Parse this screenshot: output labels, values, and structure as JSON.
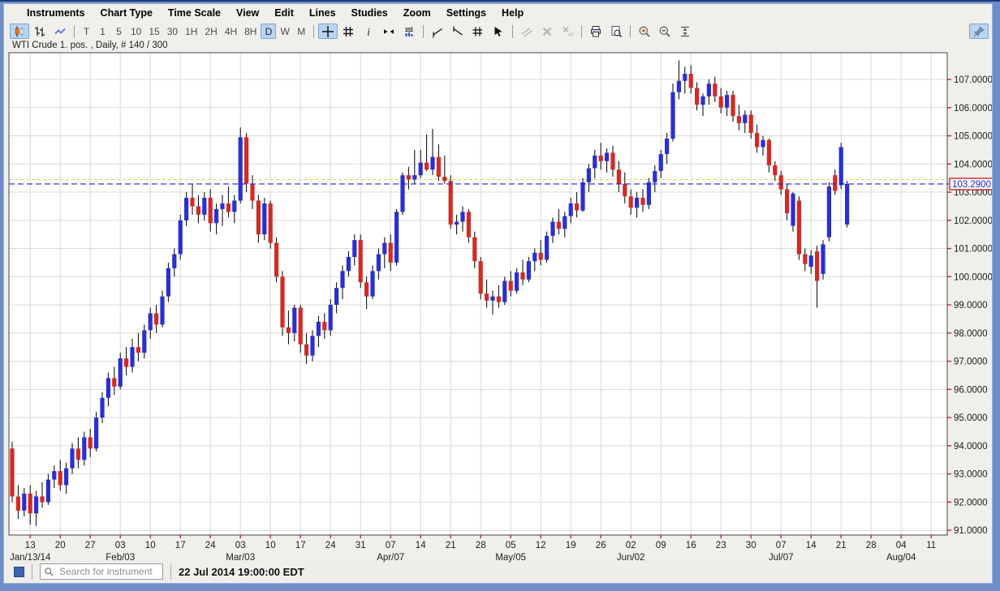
{
  "menu": {
    "items": [
      "Instruments",
      "Chart Type",
      "Time Scale",
      "View",
      "Edit",
      "Lines",
      "Studies",
      "Zoom",
      "Settings",
      "Help"
    ]
  },
  "toolbar": {
    "groups": [
      {
        "buttons": [
          {
            "icon": "candlestick-chart",
            "active": true
          },
          {
            "icon": "ohlc-bars"
          },
          {
            "icon": "line-chart"
          }
        ]
      },
      {
        "buttons": [
          {
            "label": "T"
          },
          {
            "label": "1"
          },
          {
            "label": "5"
          },
          {
            "label": "10"
          },
          {
            "label": "15"
          },
          {
            "label": "30"
          },
          {
            "label": "1H"
          },
          {
            "label": "2H"
          },
          {
            "label": "4H"
          },
          {
            "label": "8H"
          },
          {
            "label": "D",
            "active": true
          },
          {
            "label": "W"
          },
          {
            "label": "M"
          }
        ]
      },
      {
        "buttons": [
          {
            "icon": "crosshair",
            "active": true
          },
          {
            "icon": "grid"
          },
          {
            "icon": "info"
          },
          {
            "icon": "expand-horizontal"
          },
          {
            "icon": "volume"
          }
        ]
      },
      {
        "buttons": [
          {
            "icon": "trendline"
          },
          {
            "icon": "trendline-ray"
          },
          {
            "icon": "trendline-hash"
          },
          {
            "icon": "pointer"
          }
        ]
      },
      {
        "buttons": [
          {
            "icon": "parallel-lines",
            "disabled": true
          },
          {
            "icon": "delete-drawing",
            "disabled": true
          },
          {
            "icon": "delete-all-drawings",
            "disabled": true
          }
        ]
      },
      {
        "buttons": [
          {
            "icon": "print"
          },
          {
            "icon": "print-preview"
          }
        ]
      },
      {
        "buttons": [
          {
            "icon": "zoom-in"
          },
          {
            "icon": "zoom-out"
          },
          {
            "icon": "fit-vertical"
          }
        ]
      }
    ],
    "pin": {
      "icon": "pin",
      "active": true
    }
  },
  "chart": {
    "title": "WTI Crude 1. pos. , Daily, # 140 / 300"
  },
  "chart_data": {
    "type": "candlestick",
    "title": "WTI Crude 1. pos. , Daily, # 140 / 300",
    "bars_shown": 140,
    "bars_total": 300,
    "ylim": [
      90.83,
      107.95
    ],
    "y_ticks": [
      91,
      92,
      93,
      94,
      95,
      96,
      97,
      98,
      99,
      100,
      101,
      102,
      103,
      104,
      105,
      106,
      107
    ],
    "x_tick_days": [
      "13",
      "20",
      "27",
      "03",
      "10",
      "17",
      "24",
      "03",
      "10",
      "17",
      "24",
      "31",
      "07",
      "14",
      "21",
      "28",
      "05",
      "12",
      "19",
      "26",
      "02",
      "09",
      "16",
      "23",
      "30",
      "07",
      "14",
      "21",
      "28",
      "04",
      "11"
    ],
    "month_labels": [
      {
        "tick": 0,
        "label": "Jan/13/14"
      },
      {
        "tick": 3,
        "label": "Feb/03"
      },
      {
        "tick": 7,
        "label": "Mar/03"
      },
      {
        "tick": 12,
        "label": "Apr/07"
      },
      {
        "tick": 16,
        "label": "May/05"
      },
      {
        "tick": 20,
        "label": "Jun/02"
      },
      {
        "tick": 25,
        "label": "Jul/07"
      },
      {
        "tick": 29,
        "label": "Aug/04"
      }
    ],
    "last_price": 103.29,
    "last_price_label": "103.2900",
    "settlement_price": 103.45,
    "colors": {
      "up": "#2a2fd4",
      "down": "#d42a24",
      "wick": "#000000",
      "grid": "#d9d9d9",
      "axis_tick": "#cc2222",
      "axis_label": "#1c1c1c",
      "border": "#444444",
      "last_price_line": "#2020e0",
      "last_price_box_border": "#cc0000",
      "settlement_line": "#ddd45a",
      "plot_bg": "#ffffff"
    },
    "candles": [
      [
        93.9,
        94.15,
        92.0,
        92.2
      ],
      [
        92.2,
        92.6,
        91.4,
        91.7
      ],
      [
        91.7,
        92.5,
        91.5,
        92.3
      ],
      [
        92.3,
        92.6,
        91.2,
        91.6
      ],
      [
        91.6,
        92.4,
        91.15,
        92.2
      ],
      [
        92.2,
        92.7,
        91.8,
        92.0
      ],
      [
        92.0,
        93.0,
        91.9,
        92.8
      ],
      [
        92.8,
        93.3,
        92.5,
        93.1
      ],
      [
        93.1,
        93.5,
        92.4,
        92.6
      ],
      [
        92.6,
        93.4,
        92.3,
        93.2
      ],
      [
        93.2,
        94.1,
        93.0,
        93.9
      ],
      [
        93.9,
        94.3,
        93.2,
        93.5
      ],
      [
        93.5,
        94.5,
        93.3,
        94.3
      ],
      [
        94.3,
        94.6,
        93.6,
        93.9
      ],
      [
        93.9,
        95.2,
        93.8,
        95.0
      ],
      [
        95.0,
        95.9,
        94.8,
        95.7
      ],
      [
        95.7,
        96.6,
        95.4,
        96.4
      ],
      [
        96.4,
        96.8,
        95.8,
        96.1
      ],
      [
        96.1,
        97.3,
        96.0,
        97.1
      ],
      [
        97.1,
        97.5,
        96.5,
        96.8
      ],
      [
        96.8,
        97.8,
        96.6,
        97.5
      ],
      [
        97.5,
        98.0,
        97.0,
        97.3
      ],
      [
        97.3,
        98.3,
        97.1,
        98.1
      ],
      [
        98.1,
        98.9,
        97.8,
        98.7
      ],
      [
        98.7,
        99.0,
        98.0,
        98.3
      ],
      [
        98.3,
        99.5,
        98.2,
        99.3
      ],
      [
        99.3,
        100.5,
        99.1,
        100.3
      ],
      [
        100.3,
        101.0,
        100.0,
        100.8
      ],
      [
        100.8,
        102.2,
        100.6,
        102.0
      ],
      [
        102.0,
        103.0,
        101.8,
        102.8
      ],
      [
        102.8,
        103.3,
        102.2,
        102.5
      ],
      [
        102.5,
        102.9,
        101.9,
        102.2
      ],
      [
        102.2,
        103.0,
        102.0,
        102.8
      ],
      [
        102.8,
        103.1,
        101.6,
        101.9
      ],
      [
        101.9,
        102.6,
        101.5,
        102.4
      ],
      [
        102.4,
        102.9,
        101.8,
        102.6
      ],
      [
        102.6,
        103.2,
        102.1,
        102.3
      ],
      [
        102.3,
        102.9,
        101.9,
        102.7
      ],
      [
        102.7,
        105.3,
        102.6,
        104.95
      ],
      [
        104.95,
        105.1,
        103.0,
        103.3
      ],
      [
        103.3,
        103.6,
        102.4,
        102.7
      ],
      [
        102.7,
        102.9,
        101.2,
        101.5
      ],
      [
        101.5,
        102.8,
        101.3,
        102.6
      ],
      [
        102.6,
        102.7,
        101.0,
        101.2
      ],
      [
        101.2,
        101.4,
        99.8,
        100.0
      ],
      [
        100.0,
        100.2,
        97.9,
        98.2
      ],
      [
        98.2,
        98.8,
        97.6,
        98.0
      ],
      [
        98.0,
        99.0,
        97.7,
        98.9
      ],
      [
        98.9,
        99.0,
        97.3,
        97.6
      ],
      [
        97.6,
        98.0,
        96.9,
        97.2
      ],
      [
        97.2,
        98.1,
        97.0,
        97.9
      ],
      [
        97.9,
        98.6,
        97.5,
        98.4
      ],
      [
        98.4,
        98.7,
        97.8,
        98.1
      ],
      [
        98.1,
        99.2,
        97.9,
        99.0
      ],
      [
        99.0,
        99.8,
        98.7,
        99.6
      ],
      [
        99.6,
        100.4,
        99.2,
        100.2
      ],
      [
        100.2,
        100.9,
        100.0,
        100.7
      ],
      [
        100.7,
        101.5,
        100.4,
        101.3
      ],
      [
        101.3,
        101.5,
        99.6,
        99.8
      ],
      [
        99.8,
        100.0,
        98.85,
        99.3
      ],
      [
        99.3,
        100.4,
        99.2,
        100.2
      ],
      [
        100.2,
        101.0,
        99.9,
        100.8
      ],
      [
        100.8,
        101.4,
        100.3,
        101.2
      ],
      [
        101.2,
        101.5,
        100.2,
        100.5
      ],
      [
        100.5,
        102.4,
        100.4,
        102.3
      ],
      [
        102.3,
        103.7,
        102.2,
        103.6
      ],
      [
        103.6,
        103.9,
        103.1,
        103.45
      ],
      [
        103.45,
        104.5,
        103.3,
        103.6
      ],
      [
        103.6,
        104.5,
        103.5,
        104.05
      ],
      [
        104.05,
        105.05,
        103.75,
        103.8
      ],
      [
        103.8,
        105.25,
        103.6,
        104.25
      ],
      [
        104.25,
        104.7,
        103.4,
        103.55
      ],
      [
        103.55,
        104.3,
        103.3,
        103.4
      ],
      [
        103.4,
        103.6,
        101.7,
        101.85
      ],
      [
        101.85,
        102.2,
        101.5,
        101.95
      ],
      [
        101.95,
        102.5,
        101.6,
        102.3
      ],
      [
        102.3,
        102.4,
        101.2,
        101.4
      ],
      [
        101.4,
        101.6,
        100.3,
        100.55
      ],
      [
        100.55,
        100.7,
        99.2,
        99.4
      ],
      [
        99.4,
        99.9,
        98.9,
        99.15
      ],
      [
        99.15,
        99.5,
        98.65,
        99.3
      ],
      [
        99.3,
        99.7,
        98.9,
        99.1
      ],
      [
        99.1,
        100.0,
        99.0,
        99.85
      ],
      [
        99.85,
        100.2,
        99.3,
        99.5
      ],
      [
        99.5,
        100.3,
        99.4,
        100.15
      ],
      [
        100.15,
        100.6,
        99.7,
        99.9
      ],
      [
        99.9,
        100.7,
        99.8,
        100.55
      ],
      [
        100.55,
        101.0,
        100.2,
        100.85
      ],
      [
        100.85,
        101.3,
        100.4,
        100.6
      ],
      [
        100.6,
        101.6,
        100.5,
        101.45
      ],
      [
        101.45,
        102.1,
        101.2,
        101.95
      ],
      [
        101.95,
        102.4,
        101.5,
        101.7
      ],
      [
        101.7,
        102.3,
        101.4,
        102.15
      ],
      [
        102.15,
        102.8,
        101.9,
        102.6
      ],
      [
        102.6,
        103.0,
        102.1,
        102.35
      ],
      [
        102.35,
        103.5,
        102.3,
        103.35
      ],
      [
        103.35,
        104.0,
        103.0,
        103.85
      ],
      [
        103.85,
        104.5,
        103.5,
        104.3
      ],
      [
        104.3,
        104.75,
        103.8,
        104.1
      ],
      [
        104.1,
        104.55,
        103.7,
        104.4
      ],
      [
        104.4,
        104.65,
        103.55,
        103.8
      ],
      [
        103.8,
        104.1,
        103.0,
        103.3
      ],
      [
        103.3,
        103.7,
        102.6,
        102.85
      ],
      [
        102.85,
        103.1,
        102.2,
        102.45
      ],
      [
        102.45,
        103.0,
        102.1,
        102.8
      ],
      [
        102.8,
        103.1,
        102.3,
        102.55
      ],
      [
        102.55,
        103.5,
        102.4,
        103.35
      ],
      [
        103.35,
        103.95,
        103.0,
        103.75
      ],
      [
        103.75,
        104.5,
        103.5,
        104.35
      ],
      [
        104.35,
        105.1,
        104.0,
        104.9
      ],
      [
        104.9,
        106.85,
        104.8,
        106.55
      ],
      [
        106.55,
        107.68,
        106.3,
        106.95
      ],
      [
        106.95,
        107.45,
        106.5,
        107.2
      ],
      [
        107.2,
        107.5,
        106.5,
        106.7
      ],
      [
        106.7,
        106.9,
        105.9,
        106.1
      ],
      [
        106.1,
        106.5,
        105.7,
        106.4
      ],
      [
        106.4,
        107.0,
        106.1,
        106.85
      ],
      [
        106.85,
        107.1,
        106.2,
        106.4
      ],
      [
        106.4,
        106.7,
        105.8,
        106.0
      ],
      [
        106.0,
        106.6,
        105.7,
        106.45
      ],
      [
        106.45,
        106.6,
        105.5,
        105.7
      ],
      [
        105.7,
        106.1,
        105.2,
        105.45
      ],
      [
        105.45,
        105.9,
        105.1,
        105.75
      ],
      [
        105.75,
        105.9,
        104.9,
        105.1
      ],
      [
        105.1,
        105.4,
        104.4,
        104.6
      ],
      [
        104.6,
        105.0,
        104.3,
        104.85
      ],
      [
        104.85,
        104.9,
        103.7,
        103.95
      ],
      [
        103.95,
        104.1,
        103.4,
        103.6
      ],
      [
        103.6,
        103.75,
        102.9,
        103.1
      ],
      [
        103.1,
        103.3,
        102.0,
        102.25
      ],
      [
        101.8,
        103.0,
        101.6,
        102.95
      ],
      [
        102.7,
        102.85,
        100.6,
        100.8
      ],
      [
        100.8,
        101.0,
        100.2,
        100.45
      ],
      [
        100.35,
        100.95,
        100.1,
        100.75
      ],
      [
        100.9,
        101.1,
        98.9,
        99.85
      ],
      [
        100.1,
        101.3,
        99.9,
        101.15
      ],
      [
        101.4,
        103.35,
        101.25,
        103.2
      ],
      [
        103.6,
        103.8,
        102.9,
        103.05
      ],
      [
        103.25,
        104.75,
        103.1,
        104.6
      ],
      [
        101.85,
        103.4,
        101.75,
        103.29
      ]
    ]
  },
  "statusbar": {
    "search_placeholder": "Search for instrument",
    "timestamp": "22 Jul 2014 19:00:00 EDT"
  }
}
